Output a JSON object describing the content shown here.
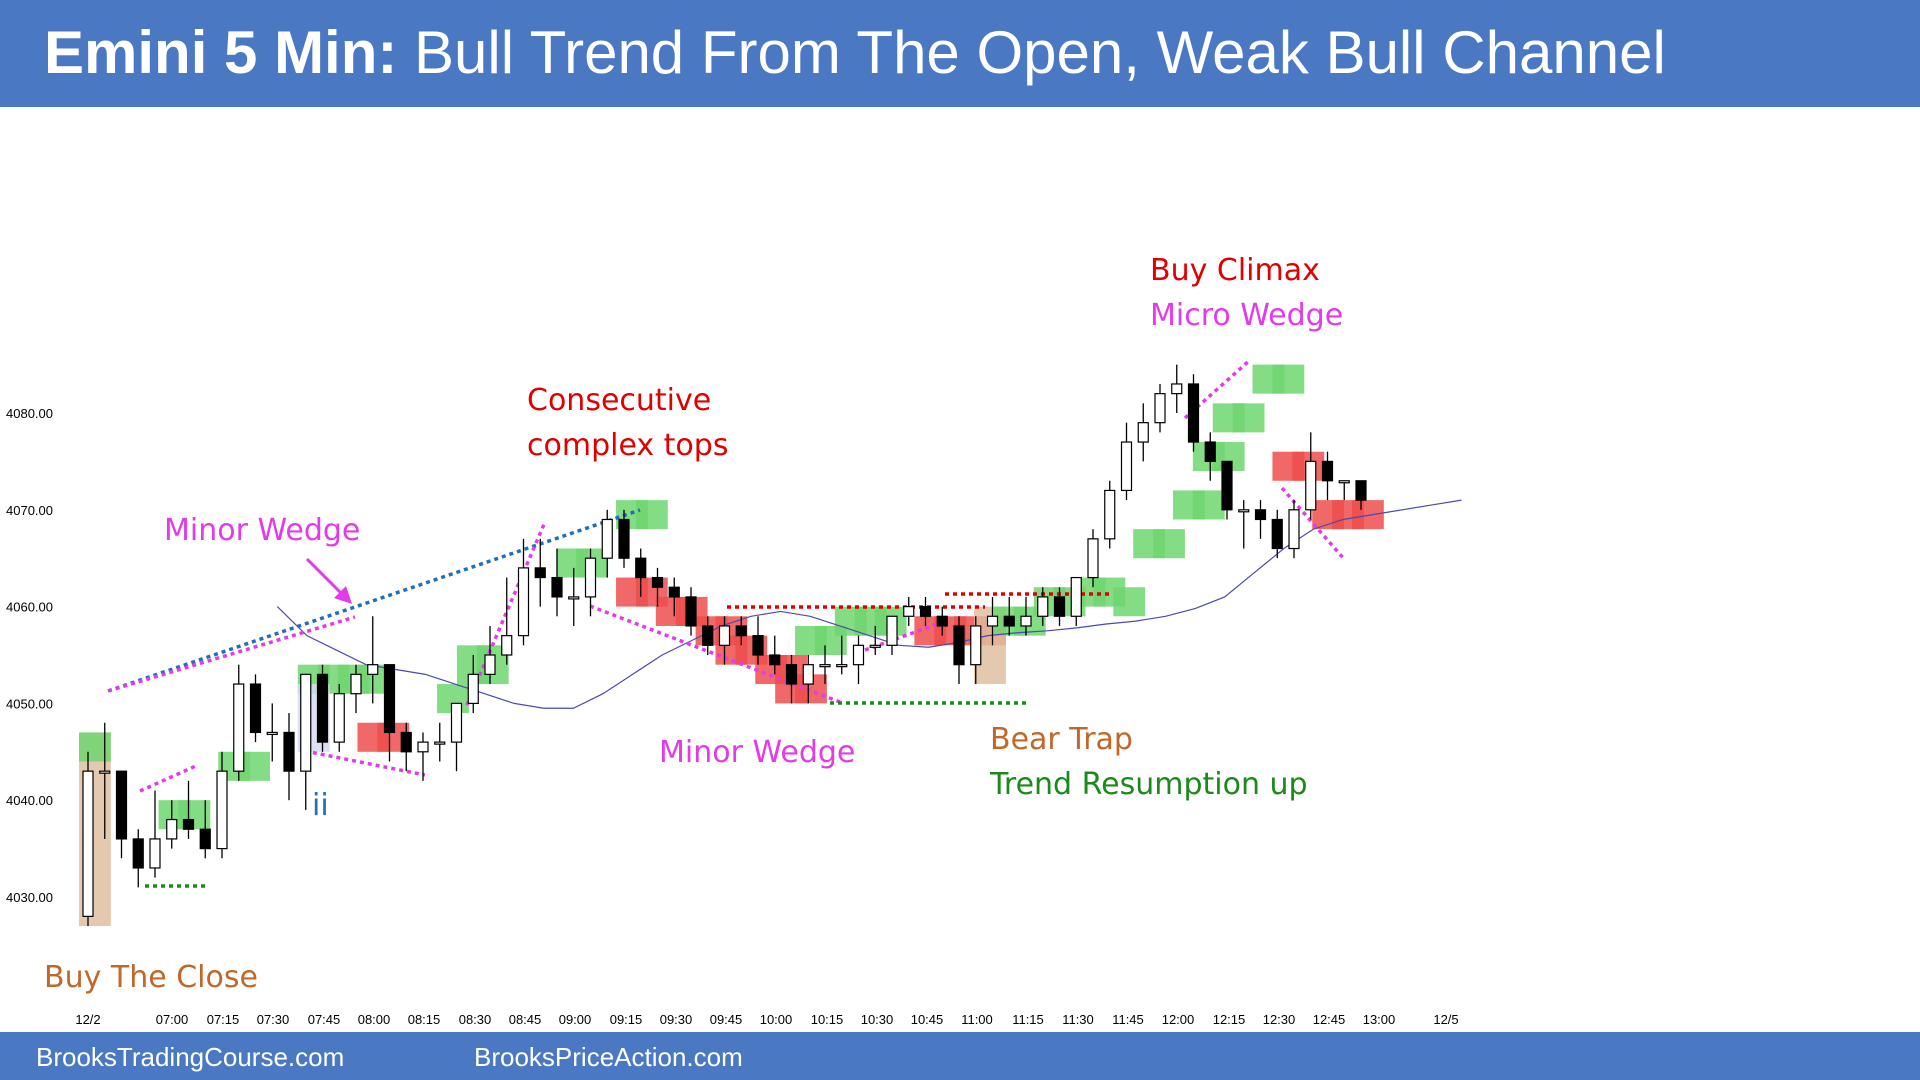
{
  "header": {
    "title_bold": "Emini 5 Min:",
    "title_rest": "Bull Trend From The Open, Weak Bull Channel"
  },
  "footer": {
    "link_left": "BrooksTradingCourse.com",
    "link_right": "BrooksPriceAction.com"
  },
  "colors": {
    "banner": "#4a78c2",
    "bull_body": "#ffffff",
    "bear_body": "#000000",
    "bull_highlight": "#6fd66f",
    "bear_highlight": "#ef4d4d",
    "setup_highlight": "#e0bfa0",
    "ema": "#4a4ab0",
    "magenta": "#e23ce8",
    "red": "#e00000",
    "brown": "#c0682a",
    "green": "#1a8a1a",
    "blue": "#1f6fbf"
  },
  "chart_data": {
    "type": "candlestick",
    "title": "Emini 5 Min: Bull Trend From The Open, Weak Bull Channel",
    "y_ticks": [
      "4080.00",
      "4070.00",
      "4060.00",
      "4050.00",
      "4040.00",
      "4030.00"
    ],
    "x_ticks": [
      "12/2",
      "07:00",
      "07:15",
      "07:30",
      "07:45",
      "08:00",
      "08:15",
      "08:30",
      "08:45",
      "09:00",
      "09:15",
      "09:30",
      "09:45",
      "10:00",
      "10:15",
      "10:30",
      "10:45",
      "11:00",
      "11:15",
      "11:30",
      "11:45",
      "12:00",
      "12:15",
      "12:30",
      "12:45",
      "13:00",
      "12/5"
    ],
    "ylim": [
      4022,
      4103
    ],
    "grid": false,
    "candles": [
      {
        "o": 4028,
        "h": 4045,
        "l": 4027,
        "c": 4043
      },
      {
        "o": 4043,
        "h": 4048,
        "l": 4036,
        "c": 4043
      },
      {
        "o": 4043,
        "h": 4043,
        "l": 4034,
        "c": 4036
      },
      {
        "o": 4036,
        "h": 4037,
        "l": 4031,
        "c": 4033
      },
      {
        "o": 4033,
        "h": 4041,
        "l": 4032,
        "c": 4036
      },
      {
        "o": 4036,
        "h": 4040,
        "l": 4035,
        "c": 4038
      },
      {
        "o": 4038,
        "h": 4042,
        "l": 4036,
        "c": 4037
      },
      {
        "o": 4037,
        "h": 4040,
        "l": 4034,
        "c": 4035
      },
      {
        "o": 4035,
        "h": 4045,
        "l": 4034,
        "c": 4043
      },
      {
        "o": 4043,
        "h": 4054,
        "l": 4042,
        "c": 4052
      },
      {
        "o": 4052,
        "h": 4053,
        "l": 4046,
        "c": 4047
      },
      {
        "o": 4047,
        "h": 4050,
        "l": 4044,
        "c": 4047
      },
      {
        "o": 4047,
        "h": 4049,
        "l": 4040,
        "c": 4043
      },
      {
        "o": 4043,
        "h": 4053,
        "l": 4039,
        "c": 4053
      },
      {
        "o": 4053,
        "h": 4054,
        "l": 4045,
        "c": 4046
      },
      {
        "o": 4046,
        "h": 4052,
        "l": 4045,
        "c": 4051
      },
      {
        "o": 4051,
        "h": 4054,
        "l": 4049,
        "c": 4053
      },
      {
        "o": 4053,
        "h": 4059,
        "l": 4050,
        "c": 4054
      },
      {
        "o": 4054,
        "h": 4054,
        "l": 4044,
        "c": 4047
      },
      {
        "o": 4047,
        "h": 4048,
        "l": 4043,
        "c": 4045
      },
      {
        "o": 4045,
        "h": 4047,
        "l": 4042,
        "c": 4046
      },
      {
        "o": 4046,
        "h": 4048,
        "l": 4044,
        "c": 4046
      },
      {
        "o": 4046,
        "h": 4050,
        "l": 4043,
        "c": 4050
      },
      {
        "o": 4050,
        "h": 4055,
        "l": 4049,
        "c": 4053
      },
      {
        "o": 4053,
        "h": 4058,
        "l": 4052,
        "c": 4055
      },
      {
        "o": 4055,
        "h": 4063,
        "l": 4054,
        "c": 4057
      },
      {
        "o": 4057,
        "h": 4067,
        "l": 4056,
        "c": 4064
      },
      {
        "o": 4064,
        "h": 4067,
        "l": 4060,
        "c": 4063
      },
      {
        "o": 4063,
        "h": 4066,
        "l": 4059,
        "c": 4061
      },
      {
        "o": 4061,
        "h": 4064,
        "l": 4058,
        "c": 4061
      },
      {
        "o": 4061,
        "h": 4066,
        "l": 4059,
        "c": 4065
      },
      {
        "o": 4065,
        "h": 4070,
        "l": 4063,
        "c": 4069
      },
      {
        "o": 4069,
        "h": 4070,
        "l": 4064,
        "c": 4065
      },
      {
        "o": 4065,
        "h": 4066,
        "l": 4061,
        "c": 4063
      },
      {
        "o": 4063,
        "h": 4064,
        "l": 4060,
        "c": 4062
      },
      {
        "o": 4062,
        "h": 4063,
        "l": 4059,
        "c": 4061
      },
      {
        "o": 4061,
        "h": 4062,
        "l": 4057,
        "c": 4058
      },
      {
        "o": 4058,
        "h": 4059,
        "l": 4055,
        "c": 4056
      },
      {
        "o": 4056,
        "h": 4059,
        "l": 4054,
        "c": 4058
      },
      {
        "o": 4058,
        "h": 4059,
        "l": 4056,
        "c": 4057
      },
      {
        "o": 4057,
        "h": 4059,
        "l": 4054,
        "c": 4055
      },
      {
        "o": 4055,
        "h": 4057,
        "l": 4053,
        "c": 4054
      },
      {
        "o": 4054,
        "h": 4055,
        "l": 4050,
        "c": 4052
      },
      {
        "o": 4052,
        "h": 4055,
        "l": 4050,
        "c": 4054
      },
      {
        "o": 4054,
        "h": 4056,
        "l": 4052,
        "c": 4054
      },
      {
        "o": 4054,
        "h": 4057,
        "l": 4053,
        "c": 4054
      },
      {
        "o": 4054,
        "h": 4057,
        "l": 4052,
        "c": 4056
      },
      {
        "o": 4056,
        "h": 4058,
        "l": 4055,
        "c": 4056
      },
      {
        "o": 4056,
        "h": 4059,
        "l": 4055,
        "c": 4059
      },
      {
        "o": 4059,
        "h": 4061,
        "l": 4058,
        "c": 4060
      },
      {
        "o": 4060,
        "h": 4061,
        "l": 4058,
        "c": 4059
      },
      {
        "o": 4059,
        "h": 4060,
        "l": 4057,
        "c": 4058
      },
      {
        "o": 4058,
        "h": 4059,
        "l": 4052,
        "c": 4054
      },
      {
        "o": 4054,
        "h": 4059,
        "l": 4052,
        "c": 4058
      },
      {
        "o": 4058,
        "h": 4061,
        "l": 4056,
        "c": 4059
      },
      {
        "o": 4059,
        "h": 4061,
        "l": 4057,
        "c": 4058
      },
      {
        "o": 4058,
        "h": 4061,
        "l": 4057,
        "c": 4059
      },
      {
        "o": 4059,
        "h": 4062,
        "l": 4058,
        "c": 4061
      },
      {
        "o": 4061,
        "h": 4062,
        "l": 4058,
        "c": 4059
      },
      {
        "o": 4059,
        "h": 4063,
        "l": 4058,
        "c": 4063
      },
      {
        "o": 4063,
        "h": 4068,
        "l": 4062,
        "c": 4067
      },
      {
        "o": 4067,
        "h": 4073,
        "l": 4066,
        "c": 4072
      },
      {
        "o": 4072,
        "h": 4079,
        "l": 4071,
        "c": 4077
      },
      {
        "o": 4077,
        "h": 4081,
        "l": 4075,
        "c": 4079
      },
      {
        "o": 4079,
        "h": 4083,
        "l": 4078,
        "c": 4082
      },
      {
        "o": 4082,
        "h": 4085,
        "l": 4080,
        "c": 4083
      },
      {
        "o": 4083,
        "h": 4084,
        "l": 4076,
        "c": 4077
      },
      {
        "o": 4077,
        "h": 4078,
        "l": 4073,
        "c": 4075
      },
      {
        "o": 4075,
        "h": 4075,
        "l": 4069,
        "c": 4070
      },
      {
        "o": 4070,
        "h": 4071,
        "l": 4066,
        "c": 4070
      },
      {
        "o": 4070,
        "h": 4071,
        "l": 4067,
        "c": 4069
      },
      {
        "o": 4069,
        "h": 4070,
        "l": 4065,
        "c": 4066
      },
      {
        "o": 4066,
        "h": 4071,
        "l": 4065,
        "c": 4070
      },
      {
        "o": 4070,
        "h": 4078,
        "l": 4069,
        "c": 4075
      },
      {
        "o": 4075,
        "h": 4076,
        "l": 4071,
        "c": 4073
      },
      {
        "o": 4073,
        "h": 4073,
        "l": 4071,
        "c": 4073
      },
      {
        "o": 4073,
        "h": 4073,
        "l": 4070,
        "c": 4071
      }
    ],
    "ema": [
      [
        6,
        4060
      ],
      [
        8,
        4057
      ],
      [
        10,
        4055.5
      ],
      [
        12,
        4054
      ],
      [
        14,
        4053.5
      ],
      [
        16,
        4053
      ],
      [
        18,
        4052
      ],
      [
        20,
        4051
      ],
      [
        22,
        4050
      ],
      [
        24,
        4049.5
      ],
      [
        26,
        4049.5
      ],
      [
        28,
        4051
      ],
      [
        30,
        4053
      ],
      [
        32,
        4055
      ],
      [
        34,
        4056.5
      ],
      [
        36,
        4058
      ],
      [
        38,
        4059
      ],
      [
        40,
        4059.5
      ],
      [
        42,
        4059
      ],
      [
        44,
        4058
      ],
      [
        46,
        4057
      ],
      [
        48,
        4056
      ],
      [
        50,
        4055.8
      ],
      [
        52,
        4056.3
      ],
      [
        54,
        4057
      ],
      [
        56,
        4057.3
      ],
      [
        58,
        4057.5
      ],
      [
        60,
        4057.8
      ],
      [
        62,
        4058.2
      ],
      [
        64,
        4058.5
      ],
      [
        66,
        4059
      ],
      [
        68,
        4059.8
      ],
      [
        70,
        4061
      ],
      [
        72,
        4063.5
      ],
      [
        74,
        4066
      ],
      [
        76,
        4068
      ],
      [
        78,
        4069
      ],
      [
        80,
        4069.5
      ],
      [
        82,
        4070
      ],
      [
        84,
        4070.5
      ],
      [
        86,
        4071
      ]
    ],
    "annotations": [
      {
        "text": "Minor Wedge",
        "color": "magenta"
      },
      {
        "text": "Consecutive",
        "color": "red"
      },
      {
        "text": "complex tops",
        "color": "red"
      },
      {
        "text": "Buy Climax",
        "color": "red"
      },
      {
        "text": "Micro Wedge",
        "color": "magenta"
      },
      {
        "text": "Minor Wedge",
        "color": "magenta"
      },
      {
        "text": "Bear Trap",
        "color": "brown"
      },
      {
        "text": "Trend Resumption  up",
        "color": "green"
      },
      {
        "text": "Buy The Close",
        "color": "brown"
      },
      {
        "text": "ii",
        "color": "blue"
      }
    ]
  }
}
